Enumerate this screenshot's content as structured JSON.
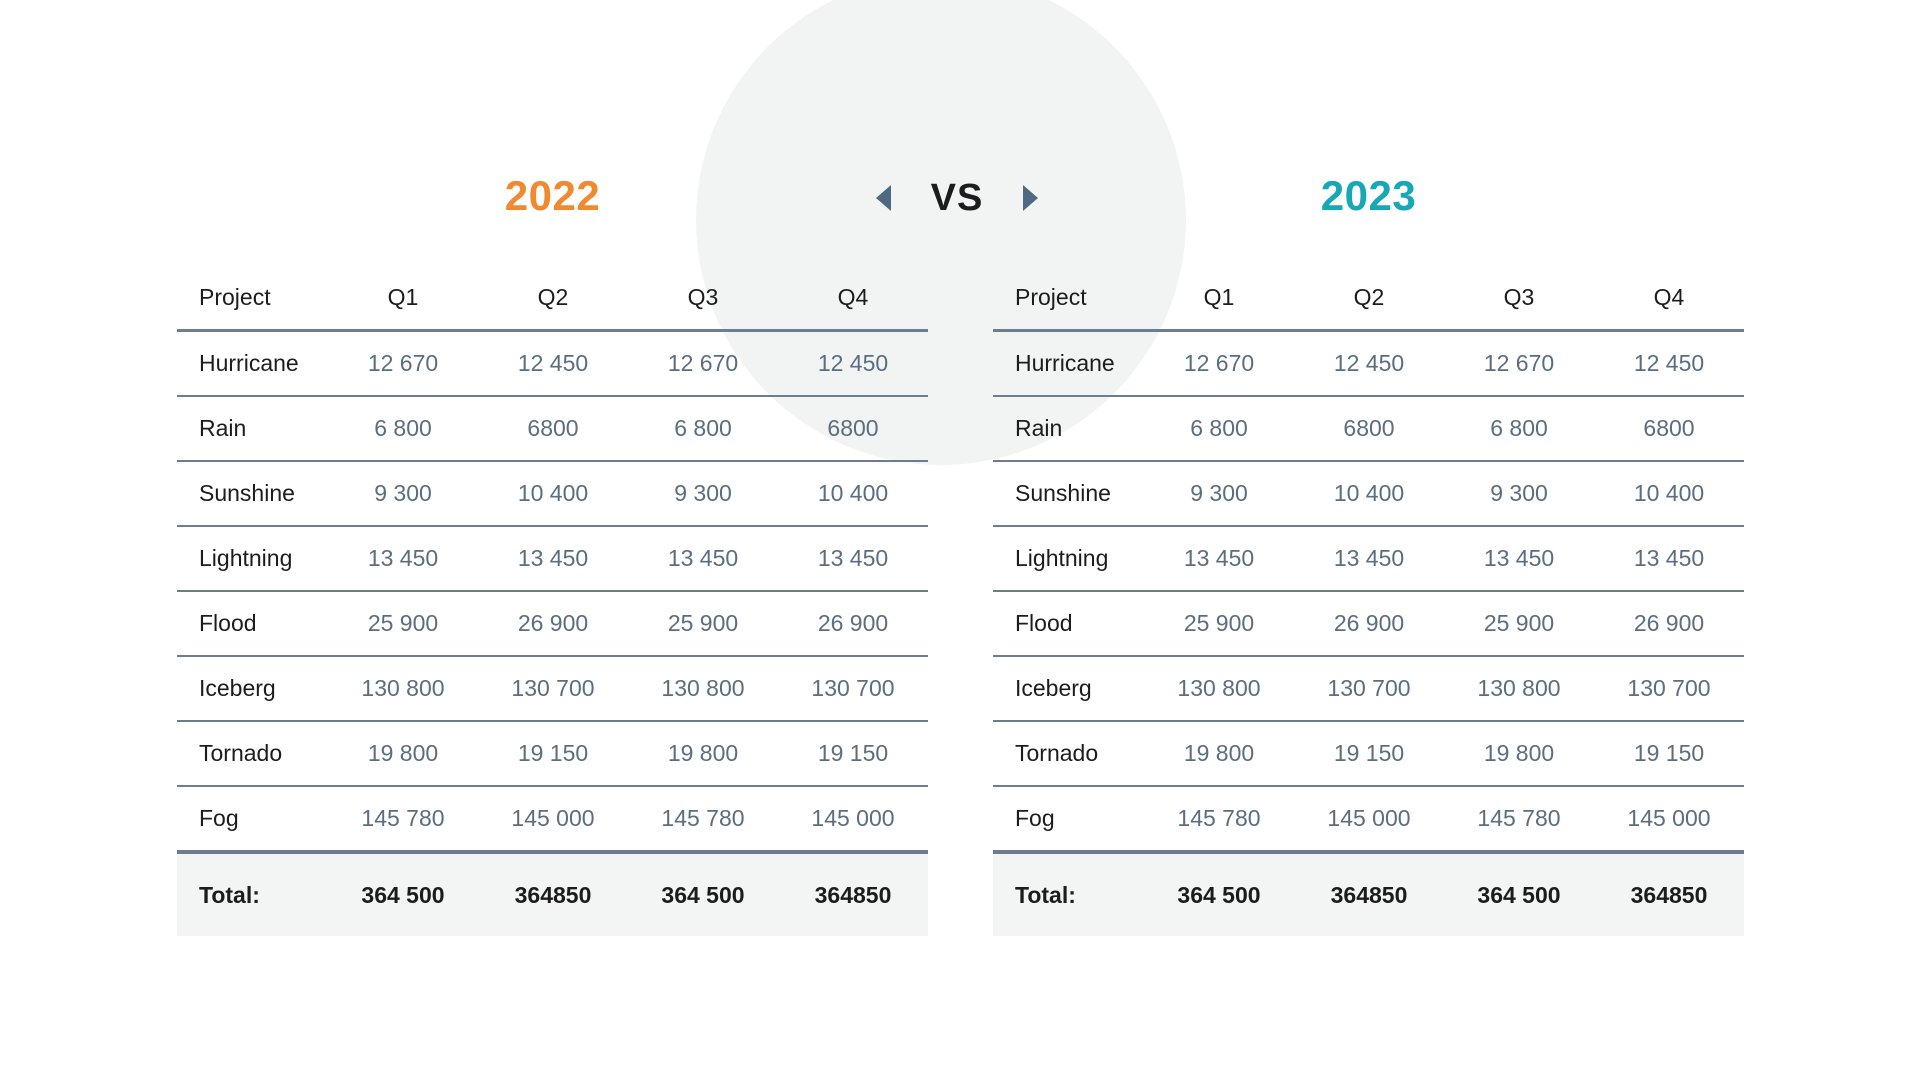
{
  "header": {
    "left_year": "2022",
    "right_year": "2023",
    "vs_label": "VS",
    "left_year_color": "#f08a30",
    "right_year_color": "#17a8b5",
    "icons": {
      "prev": "triangle-left-icon",
      "next": "triangle-right-icon"
    }
  },
  "columns": [
    "Project",
    "Q1",
    "Q2",
    "Q3",
    "Q4"
  ],
  "tables": [
    {
      "year": "2022",
      "rows": [
        {
          "project": "Hurricane",
          "q1": "12 670",
          "q2": "12 450",
          "q3": "12 670",
          "q4": "12 450"
        },
        {
          "project": "Rain",
          "q1": "6 800",
          "q2": "6800",
          "q3": "6 800",
          "q4": "6800"
        },
        {
          "project": "Sunshine",
          "q1": "9 300",
          "q2": "10 400",
          "q3": "9 300",
          "q4": "10 400"
        },
        {
          "project": "Lightning",
          "q1": "13 450",
          "q2": "13 450",
          "q3": "13 450",
          "q4": "13 450"
        },
        {
          "project": "Flood",
          "q1": "25 900",
          "q2": "26 900",
          "q3": "25 900",
          "q4": "26 900"
        },
        {
          "project": "Iceberg",
          "q1": "130 800",
          "q2": "130 700",
          "q3": "130 800",
          "q4": "130 700"
        },
        {
          "project": "Tornado",
          "q1": "19 800",
          "q2": "19 150",
          "q3": "19 800",
          "q4": "19 150"
        },
        {
          "project": "Fog",
          "q1": "145 780",
          "q2": "145 000",
          "q3": "145 780",
          "q4": "145 000"
        }
      ],
      "total": {
        "label": "Total:",
        "q1": "364 500",
        "q2": "364850",
        "q3": "364 500",
        "q4": "364850"
      }
    },
    {
      "year": "2023",
      "rows": [
        {
          "project": "Hurricane",
          "q1": "12 670",
          "q2": "12 450",
          "q3": "12 670",
          "q4": "12 450"
        },
        {
          "project": "Rain",
          "q1": "6 800",
          "q2": "6800",
          "q3": "6 800",
          "q4": "6800"
        },
        {
          "project": "Sunshine",
          "q1": "9 300",
          "q2": "10 400",
          "q3": "9 300",
          "q4": "10 400"
        },
        {
          "project": "Lightning",
          "q1": "13 450",
          "q2": "13 450",
          "q3": "13 450",
          "q4": "13 450"
        },
        {
          "project": "Flood",
          "q1": "25 900",
          "q2": "26 900",
          "q3": "25 900",
          "q4": "26 900"
        },
        {
          "project": "Iceberg",
          "q1": "130 800",
          "q2": "130 700",
          "q3": "130 800",
          "q4": "130 700"
        },
        {
          "project": "Tornado",
          "q1": "19 800",
          "q2": "19 150",
          "q3": "19 800",
          "q4": "19 150"
        },
        {
          "project": "Fog",
          "q1": "145 780",
          "q2": "145 000",
          "q3": "145 780",
          "q4": "145 000"
        }
      ],
      "total": {
        "label": "Total:",
        "q1": "364 500",
        "q2": "364850",
        "q3": "364 500",
        "q4": "364850"
      }
    }
  ]
}
